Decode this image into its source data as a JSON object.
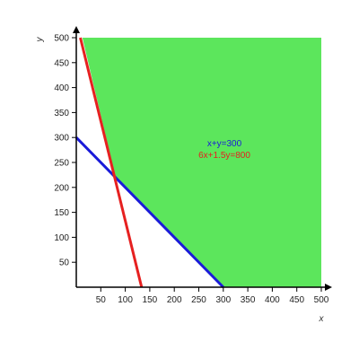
{
  "chart_data": {
    "type": "area",
    "xlabel": "x",
    "ylabel": "y",
    "xlim": [
      0,
      500
    ],
    "ylim": [
      0,
      500
    ],
    "x_ticks": [
      50,
      100,
      150,
      200,
      250,
      300,
      350,
      400,
      450,
      500
    ],
    "y_ticks": [
      50,
      100,
      150,
      200,
      250,
      300,
      350,
      400,
      450,
      500
    ],
    "grid": false,
    "feasible_region": {
      "color": "#5ce65c",
      "vertices": [
        [
          0,
          500
        ],
        [
          500,
          500
        ],
        [
          500,
          0
        ],
        [
          300,
          0
        ],
        [
          80,
          220
        ],
        [
          12.5,
          500
        ]
      ]
    },
    "series": [
      {
        "name": "x+y=300",
        "color": "#1a1ad9",
        "x": [
          0,
          300
        ],
        "y": [
          300,
          0
        ]
      },
      {
        "name": "6x+1.5y=800",
        "color": "#e62020",
        "x": [
          8.3,
          133.3
        ],
        "y": [
          500,
          0
        ]
      }
    ]
  }
}
